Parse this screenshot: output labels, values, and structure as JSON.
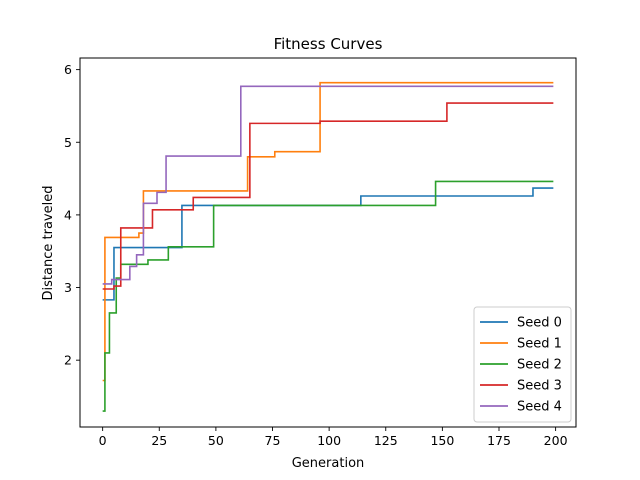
{
  "chart_data": {
    "type": "line",
    "title": "Fitness Curves",
    "xlabel": "Generation",
    "ylabel": "Distance traveled",
    "xlim": [
      -10,
      209
    ],
    "ylim": [
      1.08,
      6.16
    ],
    "xticks": [
      0,
      25,
      50,
      75,
      100,
      125,
      150,
      175,
      200
    ],
    "yticks": [
      2,
      3,
      4,
      5,
      6
    ],
    "grid": false,
    "legend_position": "lower right",
    "line_style": "step",
    "series": [
      {
        "name": "Seed 0",
        "color": "#1f77b4",
        "points": [
          [
            0,
            2.83
          ],
          [
            5,
            2.83
          ],
          [
            5,
            3.55
          ],
          [
            35,
            3.55
          ],
          [
            35,
            4.13
          ],
          [
            114,
            4.13
          ],
          [
            114,
            4.26
          ],
          [
            190,
            4.26
          ],
          [
            190,
            4.37
          ],
          [
            199,
            4.37
          ]
        ]
      },
      {
        "name": "Seed 1",
        "color": "#ff7f0e",
        "points": [
          [
            0,
            1.72
          ],
          [
            1,
            1.72
          ],
          [
            1,
            3.69
          ],
          [
            16,
            3.69
          ],
          [
            16,
            3.75
          ],
          [
            18,
            3.75
          ],
          [
            18,
            4.33
          ],
          [
            64,
            4.33
          ],
          [
            64,
            4.8
          ],
          [
            76,
            4.8
          ],
          [
            76,
            4.87
          ],
          [
            96,
            4.87
          ],
          [
            96,
            5.82
          ],
          [
            199,
            5.82
          ]
        ]
      },
      {
        "name": "Seed 2",
        "color": "#2ca02c",
        "points": [
          [
            0,
            1.3
          ],
          [
            1,
            1.3
          ],
          [
            1,
            2.1
          ],
          [
            3,
            2.1
          ],
          [
            3,
            2.65
          ],
          [
            6,
            2.65
          ],
          [
            6,
            3.13
          ],
          [
            8,
            3.13
          ],
          [
            8,
            3.32
          ],
          [
            20,
            3.32
          ],
          [
            20,
            3.38
          ],
          [
            29,
            3.38
          ],
          [
            29,
            3.56
          ],
          [
            49,
            3.56
          ],
          [
            49,
            4.13
          ],
          [
            147,
            4.13
          ],
          [
            147,
            4.46
          ],
          [
            199,
            4.46
          ]
        ]
      },
      {
        "name": "Seed 3",
        "color": "#d62728",
        "points": [
          [
            0,
            2.98
          ],
          [
            5,
            2.98
          ],
          [
            5,
            3.02
          ],
          [
            8,
            3.02
          ],
          [
            8,
            3.82
          ],
          [
            22,
            3.82
          ],
          [
            22,
            4.07
          ],
          [
            40,
            4.07
          ],
          [
            40,
            4.24
          ],
          [
            65,
            4.24
          ],
          [
            65,
            5.26
          ],
          [
            96,
            5.26
          ],
          [
            96,
            5.29
          ],
          [
            152,
            5.29
          ],
          [
            152,
            5.54
          ],
          [
            199,
            5.54
          ]
        ]
      },
      {
        "name": "Seed 4",
        "color": "#9467bd",
        "points": [
          [
            0,
            3.05
          ],
          [
            4,
            3.05
          ],
          [
            4,
            3.11
          ],
          [
            12,
            3.11
          ],
          [
            12,
            3.29
          ],
          [
            15,
            3.29
          ],
          [
            15,
            3.45
          ],
          [
            18,
            3.45
          ],
          [
            18,
            4.16
          ],
          [
            24,
            4.16
          ],
          [
            24,
            4.31
          ],
          [
            28,
            4.31
          ],
          [
            28,
            4.81
          ],
          [
            61,
            4.81
          ],
          [
            61,
            5.77
          ],
          [
            199,
            5.77
          ]
        ]
      }
    ]
  }
}
